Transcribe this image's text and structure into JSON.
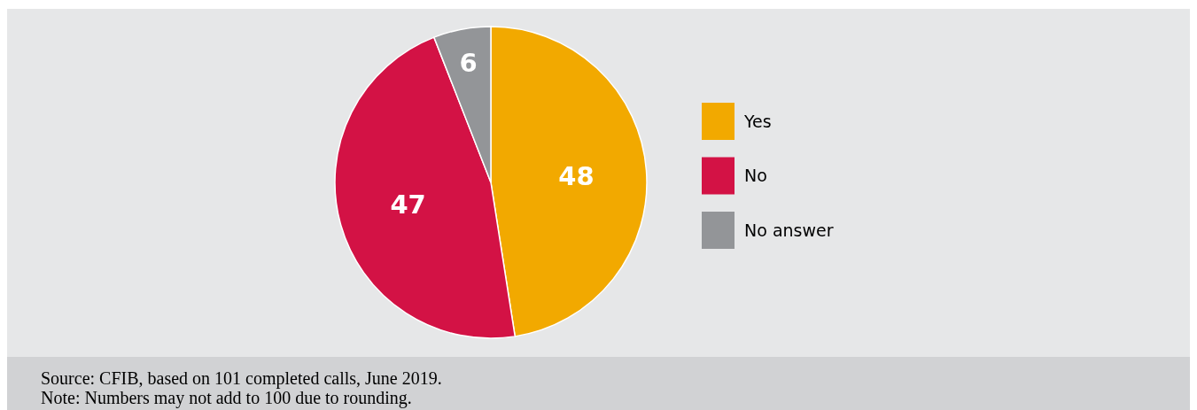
{
  "chart_data": {
    "type": "pie",
    "categories": [
      "Yes",
      "No",
      "No answer"
    ],
    "values": [
      48,
      47,
      6
    ],
    "colors": [
      "#f2a900",
      "#d31245",
      "#939598"
    ],
    "data_labels": true,
    "legend": "right",
    "annotations": [
      "Source: CFIB, based on 101 completed calls, June 2019.",
      "Note: Numbers may not add to 100 due to rounding."
    ]
  }
}
